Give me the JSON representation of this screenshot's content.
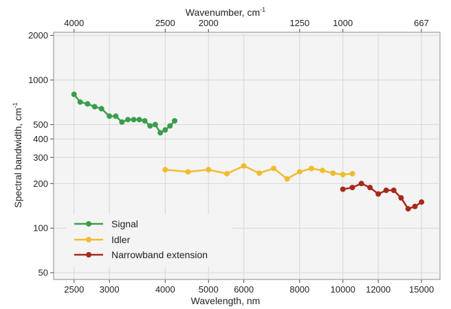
{
  "chart_data": {
    "type": "line",
    "xlabel": "Wavelength, nm",
    "x2label": "Wavenumber, cm",
    "x2label_sup": "-1",
    "ylabel": "Spectral bandwidth, cm",
    "ylabel_sup": "-1",
    "x_scale": "log",
    "y_scale": "log",
    "xlim": [
      2250,
      16500
    ],
    "ylim": [
      45,
      2100
    ],
    "x_ticks": [
      2500,
      3000,
      4000,
      5000,
      6000,
      8000,
      10000,
      12000,
      15000
    ],
    "x_tick_labels": [
      "2500",
      "3000",
      "4000",
      "5000",
      "6000",
      "8000",
      "10000",
      "12000",
      "15000"
    ],
    "x2_ticks_wavelength_nm": [
      2500,
      4000,
      5000,
      8000,
      10000,
      14993
    ],
    "x2_tick_labels": [
      "4000",
      "2500",
      "2000",
      "1250",
      "1000",
      "667"
    ],
    "y_ticks": [
      50,
      100,
      200,
      300,
      400,
      500,
      1000,
      2000
    ],
    "y_tick_labels": [
      "50",
      "100",
      "200",
      "300",
      "400",
      "500",
      "1000",
      "2000"
    ],
    "grid": true,
    "legend_position": "bottom-left",
    "series": [
      {
        "name": "Signal",
        "color": "#3a9e4a",
        "x": [
          2500,
          2580,
          2680,
          2780,
          2880,
          3000,
          3100,
          3200,
          3300,
          3400,
          3500,
          3600,
          3700,
          3800,
          3900,
          4000,
          4100,
          4200
        ],
        "y": [
          800,
          710,
          690,
          660,
          640,
          570,
          570,
          520,
          540,
          540,
          540,
          530,
          490,
          500,
          440,
          460,
          490,
          530
        ]
      },
      {
        "name": "Idler",
        "color": "#f0bc2e",
        "x": [
          4000,
          4500,
          5000,
          5500,
          6000,
          6500,
          7000,
          7500,
          8000,
          8500,
          9000,
          9500,
          10000,
          10500
        ],
        "y": [
          248,
          240,
          248,
          233,
          263,
          235,
          253,
          215,
          240,
          253,
          245,
          235,
          230,
          233
        ]
      },
      {
        "name": "Narrowband extension",
        "color": "#a8281c",
        "x": [
          10000,
          10500,
          11000,
          11500,
          12000,
          12500,
          13000,
          13500,
          14000,
          14500,
          15000
        ],
        "y": [
          183,
          188,
          200,
          188,
          170,
          180,
          180,
          160,
          135,
          140,
          150
        ]
      }
    ]
  }
}
